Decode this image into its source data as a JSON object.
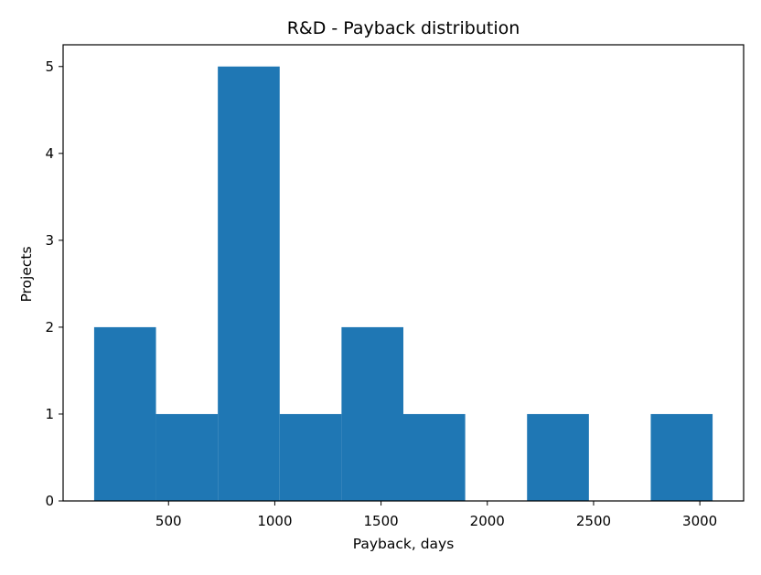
{
  "chart_data": {
    "type": "bar",
    "title": "R&D - Payback distribution",
    "xlabel": "Payback, days",
    "ylabel": "Projects",
    "bins": [
      {
        "start": 150,
        "end": 441,
        "count": 2
      },
      {
        "start": 441,
        "end": 732,
        "count": 1
      },
      {
        "start": 732,
        "end": 1023,
        "count": 5
      },
      {
        "start": 1023,
        "end": 1314,
        "count": 1
      },
      {
        "start": 1314,
        "end": 1605,
        "count": 2
      },
      {
        "start": 1605,
        "end": 1896,
        "count": 1
      },
      {
        "start": 1896,
        "end": 2187,
        "count": 0
      },
      {
        "start": 2187,
        "end": 2478,
        "count": 1
      },
      {
        "start": 2478,
        "end": 2769,
        "count": 0
      },
      {
        "start": 2769,
        "end": 3060,
        "count": 1
      }
    ],
    "xlim": [
      4,
      3206
    ],
    "ylim": [
      0,
      5.25
    ],
    "xticks": [
      500,
      1000,
      1500,
      2000,
      2500,
      3000
    ],
    "yticks": [
      0,
      1,
      2,
      3,
      4,
      5
    ],
    "bar_color": "#1f77b4",
    "grid": false,
    "legend": "none"
  }
}
